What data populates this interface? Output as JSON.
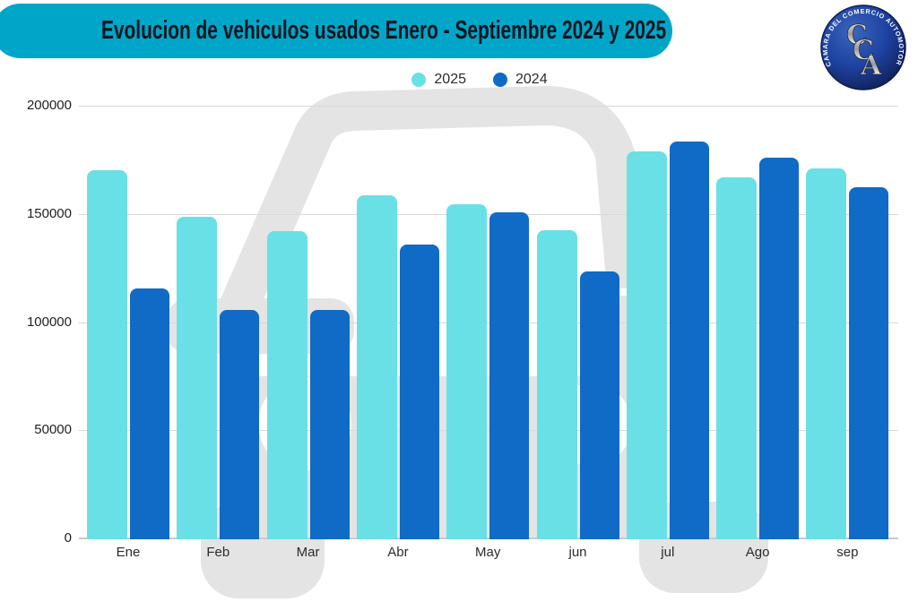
{
  "header": {
    "title": "Evolucion de vehiculos usados Enero - Septiembre 2024 y 2025",
    "banner_color": "#00a6c7",
    "logo": {
      "ring_text": "CAMARA DEL COMERCIO AUTOMOTOR",
      "letters": [
        "C",
        "C",
        "A"
      ]
    }
  },
  "legend": [
    {
      "label": "2025",
      "color": "#69e0e6"
    },
    {
      "label": "2024",
      "color": "#0f6bc5"
    }
  ],
  "chart_data": {
    "type": "bar",
    "title": "Evolucion de vehiculos usados Enero - Septiembre 2024 y 2025",
    "categories": [
      "Ene",
      "Feb",
      "Mar",
      "Abr",
      "May",
      "jun",
      "jul",
      "Ago",
      "sep"
    ],
    "series": [
      {
        "name": "2025",
        "color": "#69e0e6",
        "values": [
          170000,
          148500,
          142000,
          158500,
          154500,
          142500,
          179000,
          167000,
          171000
        ]
      },
      {
        "name": "2024",
        "color": "#0f6bc5",
        "values": [
          115500,
          105500,
          105500,
          136000,
          150800,
          123500,
          183500,
          176000,
          162500
        ]
      }
    ],
    "xlabel": "",
    "ylabel": "",
    "ylim": [
      0,
      200000
    ],
    "yticks": [
      0,
      50000,
      100000,
      150000,
      200000
    ],
    "grid": "horizontal",
    "legend_position": "top-center"
  }
}
